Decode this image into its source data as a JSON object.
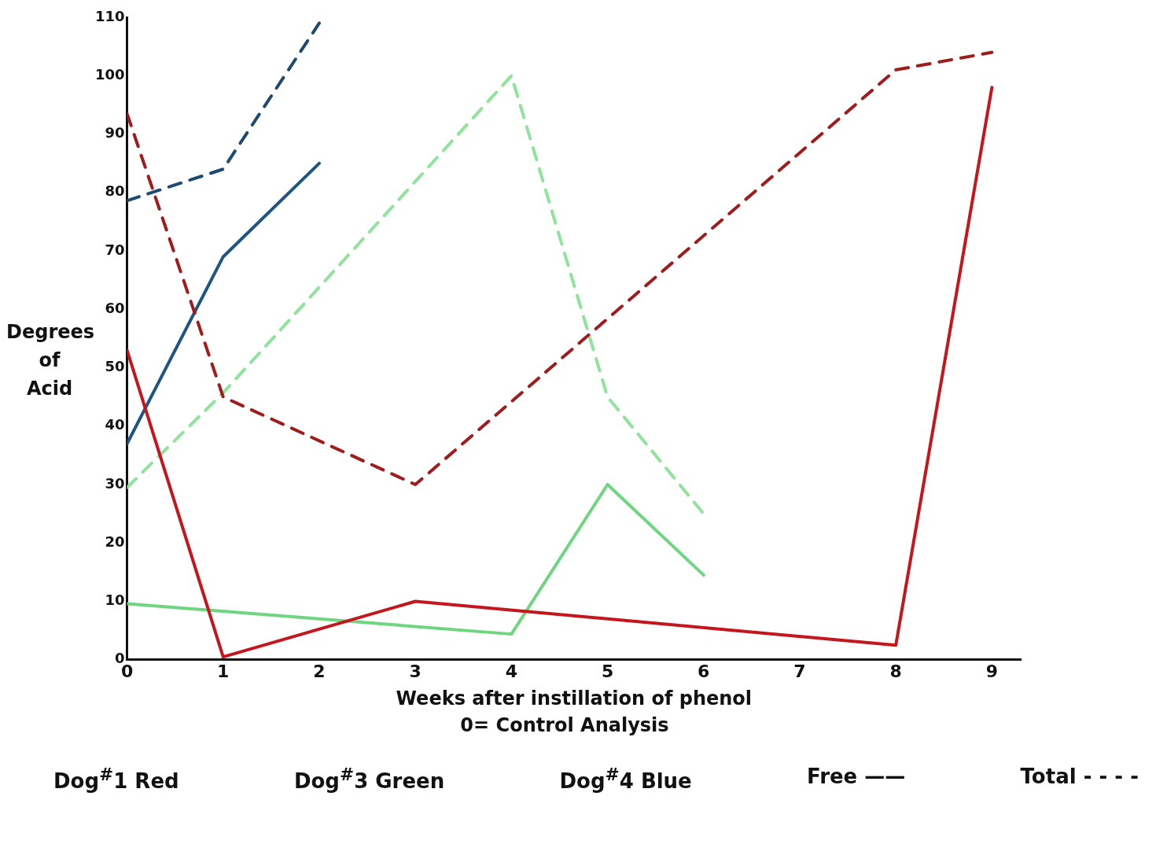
{
  "chart_data": {
    "type": "line",
    "xlabel": "Weeks after instillation of phenol",
    "ylabel": "Degrees of Acid",
    "xlim": [
      0,
      9.3
    ],
    "xticks": [
      0,
      1,
      2,
      3,
      4,
      5,
      6,
      7,
      8,
      9
    ],
    "ylim": [
      0,
      110
    ],
    "yticks": [
      0,
      10,
      20,
      30,
      40,
      50,
      60,
      70,
      80,
      90,
      100,
      110
    ],
    "grid": false,
    "legend": false,
    "marker": "none",
    "series": [
      {
        "color": "#c4161c",
        "line_style": "solid",
        "x": [
          0,
          1,
          3,
          8,
          9
        ],
        "values": [
          53,
          0.5,
          10,
          2.5,
          98
        ]
      },
      {
        "color": "#a01c1c",
        "line_style": "dashed",
        "x": [
          0,
          1,
          3,
          8,
          9
        ],
        "values": [
          93.5,
          45,
          30,
          101,
          104
        ]
      },
      {
        "color": "#6fd680",
        "line_style": "solid",
        "x": [
          0,
          4,
          5,
          6
        ],
        "values": [
          9.6,
          4.4,
          30,
          14.5
        ]
      },
      {
        "color": "#8fe39b",
        "line_style": "dashed",
        "x": [
          0,
          1,
          4,
          5,
          6
        ],
        "values": [
          29.5,
          45.7,
          100,
          45,
          25
        ]
      },
      {
        "color": "#1f5585",
        "line_style": "solid",
        "x": [
          0,
          1,
          2
        ],
        "values": [
          37,
          69,
          85
        ]
      },
      {
        "color": "#1c4a70",
        "line_style": "dashed",
        "x": [
          0,
          1,
          2
        ],
        "values": [
          78.6,
          84,
          109
        ]
      }
    ],
    "annotations": [
      "0= Control Analysis",
      "Dog$^{#}$1 Red",
      "Dog$^{#}$3 Green",
      "Dog$^{#}$4 Blue",
      "Free ——",
      "Total - - - -"
    ]
  }
}
